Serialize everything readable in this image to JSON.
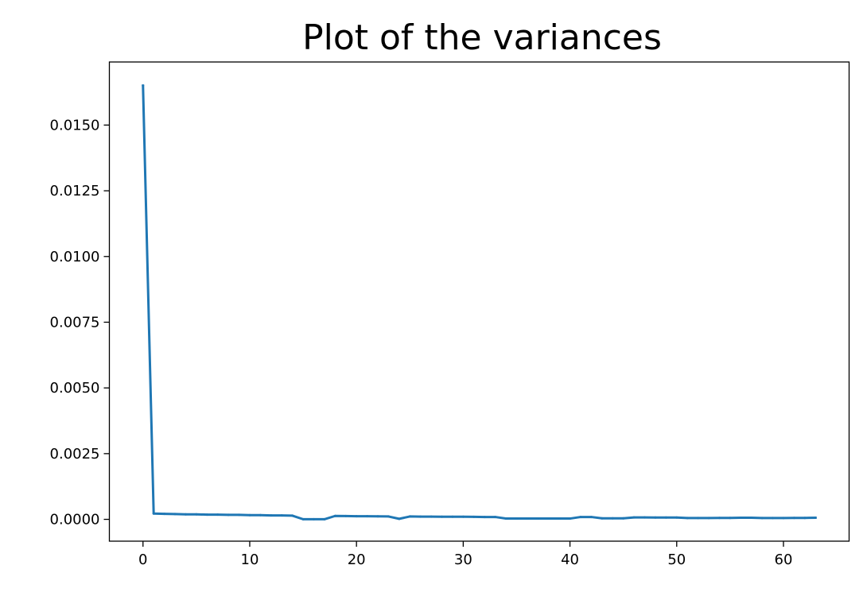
{
  "chart_data": {
    "type": "line",
    "title": "Plot of the variances",
    "xlabel": "",
    "ylabel": "",
    "xlim": [
      -3.15,
      66.15
    ],
    "ylim": [
      -0.00083,
      0.0174
    ],
    "xticks": [
      0,
      10,
      20,
      30,
      40,
      50,
      60
    ],
    "xtick_labels": [
      "0",
      "10",
      "20",
      "30",
      "40",
      "50",
      "60"
    ],
    "yticks": [
      0.0,
      0.0025,
      0.005,
      0.0075,
      0.01,
      0.0125,
      0.015
    ],
    "ytick_labels": [
      "0.0000",
      "0.0025",
      "0.0050",
      "0.0075",
      "0.0100",
      "0.0125",
      "0.0150"
    ],
    "grid": false,
    "series": [
      {
        "color": "#1f77b4",
        "x": [
          0,
          1,
          2,
          3,
          4,
          5,
          6,
          7,
          8,
          9,
          10,
          11,
          12,
          13,
          14,
          15,
          16,
          17,
          18,
          19,
          20,
          21,
          22,
          23,
          24,
          25,
          26,
          27,
          28,
          29,
          30,
          31,
          32,
          33,
          34,
          35,
          36,
          37,
          38,
          39,
          40,
          41,
          42,
          43,
          44,
          45,
          46,
          47,
          48,
          49,
          50,
          51,
          52,
          53,
          54,
          55,
          56,
          57,
          58,
          59,
          60,
          61,
          62,
          63
        ],
        "y": [
          0.0165,
          0.00022,
          0.00021,
          0.0002,
          0.00019,
          0.00019,
          0.00018,
          0.00018,
          0.00017,
          0.00017,
          0.00016,
          0.00016,
          0.00015,
          0.00015,
          0.00014,
          5e-06,
          5e-06,
          5e-06,
          0.00013,
          0.000125,
          0.00012,
          0.00012,
          0.000115,
          0.00011,
          2e-05,
          0.00011,
          0.000105,
          0.000105,
          0.0001,
          0.0001,
          0.0001,
          9.5e-05,
          9e-05,
          9e-05,
          3e-05,
          3e-05,
          3e-05,
          3e-05,
          3e-05,
          3e-05,
          3e-05,
          9e-05,
          9e-05,
          4e-05,
          4e-05,
          4e-05,
          7.5e-05,
          7.5e-05,
          7e-05,
          7e-05,
          7e-05,
          5e-05,
          5e-05,
          5e-05,
          5.5e-05,
          5.5e-05,
          6e-05,
          6e-05,
          5e-05,
          5e-05,
          5e-05,
          5.5e-05,
          5.5e-05,
          6e-05
        ]
      }
    ]
  }
}
